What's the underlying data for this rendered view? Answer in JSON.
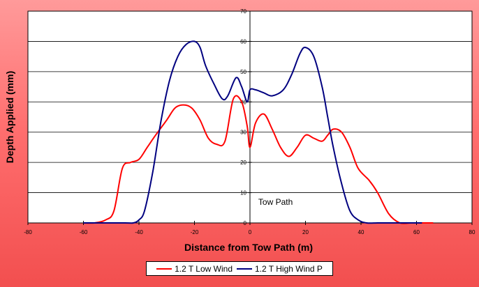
{
  "chart_data": {
    "type": "line",
    "title": "",
    "xlabel": "Distance from Tow Path (m)",
    "ylabel": "Depth Applied (mm)",
    "xlim": [
      -80,
      80
    ],
    "ylim": [
      0,
      70
    ],
    "x_ticks": [
      -80,
      -60,
      -40,
      -20,
      0,
      20,
      40,
      60,
      80
    ],
    "y_ticks": [
      10,
      20,
      30,
      40,
      50,
      60,
      70
    ],
    "y_zero_label": "0",
    "grid": "horizontal",
    "legend": "bottom",
    "annotations": [
      {
        "text": "Tow Path",
        "x": 3,
        "y": 6
      }
    ],
    "series": [
      {
        "name": "1.2 T Low Wind",
        "color": "#ff0000",
        "x": [
          -60,
          -56,
          -52,
          -49,
          -46,
          -43,
          -40,
          -37,
          -34,
          -30,
          -27,
          -24,
          -21,
          -18,
          -15,
          -12,
          -9,
          -6,
          -3,
          -1,
          0,
          2,
          5,
          8,
          11,
          14,
          17,
          20,
          23,
          26,
          28,
          30,
          33,
          36,
          39,
          43,
          46,
          50,
          54,
          58,
          62,
          66
        ],
        "y": [
          0,
          0,
          1,
          4,
          18,
          20,
          21,
          25,
          29,
          34,
          38,
          39,
          38,
          34,
          28,
          26,
          27,
          41,
          40,
          32,
          25,
          33,
          36,
          31,
          25,
          22,
          25,
          29,
          28,
          27,
          29,
          31,
          30,
          25,
          18,
          14,
          10,
          3,
          0,
          0,
          0,
          0
        ]
      },
      {
        "name": "1.2 T High Wind P",
        "color": "#000080",
        "x": [
          -60,
          -45,
          -42,
          -40,
          -38,
          -35,
          -32,
          -29,
          -26,
          -23,
          -20,
          -18,
          -16,
          -13,
          -10,
          -8,
          -5,
          -3,
          -1,
          0,
          2,
          5,
          8,
          12,
          15,
          18,
          20,
          23,
          26,
          28,
          30,
          33,
          36,
          39,
          42,
          46,
          50,
          54,
          58,
          62
        ],
        "y": [
          0,
          0,
          0,
          1,
          4,
          17,
          34,
          47,
          55,
          59,
          60,
          58,
          52,
          46,
          41,
          42,
          48,
          45,
          40,
          44,
          44,
          43,
          42,
          44,
          49,
          56,
          58,
          55,
          45,
          35,
          25,
          13,
          4,
          1,
          0,
          0,
          0,
          0,
          0,
          0
        ]
      }
    ]
  }
}
